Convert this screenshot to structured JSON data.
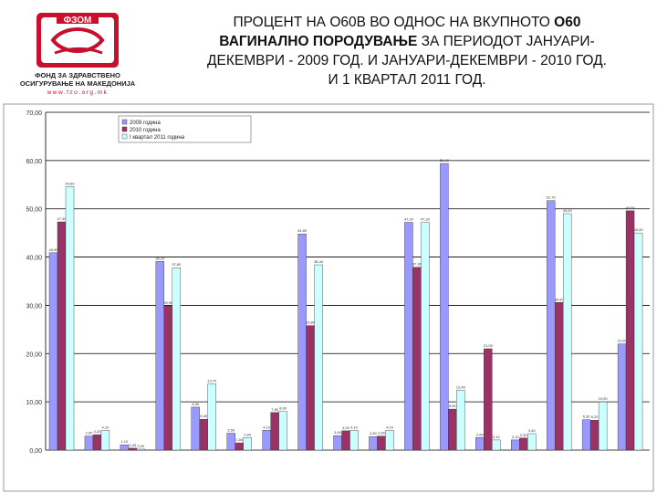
{
  "logo": {
    "brand": "ФЗОМ",
    "line1": "ФОНД ЗА ЗДРАВСТВЕНО",
    "line2": "ОСИГУРУВАЊЕ НА МАКЕДОНИЈА",
    "url": "www.fzo.org.mk",
    "accent": "#c8102e"
  },
  "title": {
    "l1a": "ПРОЦЕНТ НА О60В  ВО ОДНОС НА ВКУПНОТО ",
    "l1b": "О60",
    "l2a": "ВАГИНАЛНО ПОРОДУВАЊЕ",
    "l2b": " ЗА ПЕРИОДОТ ЈАНУАРИ-",
    "l3": "ДЕКЕМВРИ - 2009 ГОД. И ЈАНУАРИ-ДЕКЕМВРИ - 2010 ГОД.",
    "l4": "И 1 КВАРТАЛ 2011 ГОД."
  },
  "chart_data": {
    "type": "bar",
    "ylim": [
      0,
      70
    ],
    "yticks": [
      "0,00",
      "10,00",
      "20,00",
      "30,00",
      "40,00",
      "50,00",
      "60,00",
      "70,00"
    ],
    "grid": true,
    "legend_position": "top-left",
    "series": [
      {
        "name": "2009 година",
        "color": "#9999ff",
        "values": [
          40.9,
          2.9,
          1.1,
          39.1,
          8.9,
          3.5,
          4.1,
          44.8,
          3.0,
          2.8,
          47.2,
          59.4,
          2.6,
          2.1,
          51.7,
          6.3,
          22.0
        ]
      },
      {
        "name": "2010 година",
        "color": "#993366",
        "values": [
          47.3,
          3.2,
          0.4,
          29.9,
          6.4,
          1.5,
          7.8,
          25.8,
          4.0,
          2.9,
          37.9,
          8.5,
          21.0,
          2.5,
          30.6,
          6.2,
          49.6
        ]
      },
      {
        "name": "I квартал 2011 година",
        "color": "#ccffff",
        "values": [
          54.6,
          4.1,
          0.2,
          37.8,
          13.7,
          2.6,
          8.0,
          38.4,
          4.1,
          4.1,
          47.2,
          12.4,
          2.1,
          3.4,
          49.0,
          10.0,
          45.0
        ]
      }
    ]
  }
}
